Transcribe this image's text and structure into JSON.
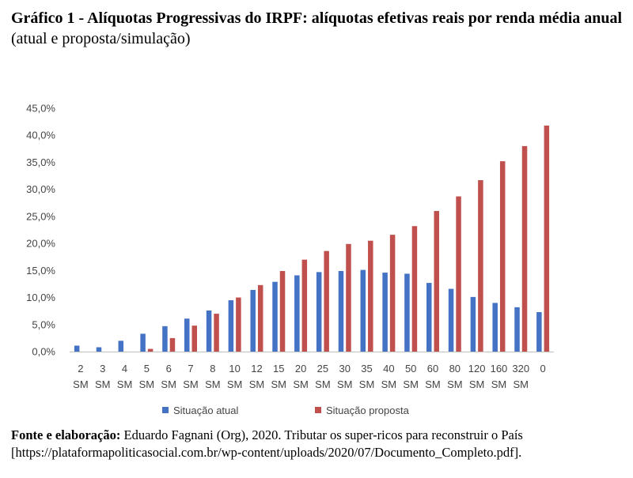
{
  "title": {
    "bold": "Gráfico 1 - Alíquotas Progressivas do IRPF: alíquotas efetivas reais por renda média anual",
    "normal": "(atual e proposta/simulação)"
  },
  "chart_data": {
    "type": "bar",
    "categories": [
      "2 SM",
      "3 SM",
      "4 SM",
      "5 SM",
      "6 SM",
      "7 SM",
      "8 SM",
      "10 SM",
      "12 SM",
      "15 SM",
      "20 SM",
      "25 SM",
      "30 SM",
      "35 SM",
      "40 SM",
      "50 SM",
      "60 SM",
      "80 SM",
      "120 SM",
      "160 SM",
      "320 SM",
      "0"
    ],
    "series": [
      {
        "name": "Situação atual",
        "color": "#4472C4",
        "values": [
          1.1,
          0.8,
          2.0,
          3.3,
          4.7,
          6.1,
          7.6,
          9.5,
          11.4,
          12.9,
          14.1,
          14.7,
          14.9,
          15.1,
          14.6,
          14.4,
          12.7,
          11.6,
          10.1,
          9.0,
          8.2,
          7.3
        ]
      },
      {
        "name": "Situação proposta",
        "color": "#C0504D",
        "values": [
          0.0,
          0.0,
          0.0,
          0.5,
          2.5,
          4.8,
          7.0,
          10.0,
          12.3,
          14.9,
          17.0,
          18.6,
          19.9,
          20.5,
          21.6,
          23.2,
          26.0,
          28.7,
          31.7,
          35.2,
          38.0,
          41.8
        ]
      }
    ],
    "yticks": [
      "0,0%",
      "5,0%",
      "10,0%",
      "15,0%",
      "20,0%",
      "25,0%",
      "30,0%",
      "35,0%",
      "40,0%",
      "45,0%"
    ],
    "ylim": [
      0,
      45
    ],
    "grid": false,
    "legend_position": "bottom"
  },
  "source": {
    "bold": "Fonte e elaboração:",
    "normal": "Eduardo Fagnani (Org), 2020. Tributar os super-ricos para reconstruir o País [https://plataformapoliticasocial.com.br/wp-content/uploads/2020/07/Documento_Completo.pdf]."
  }
}
